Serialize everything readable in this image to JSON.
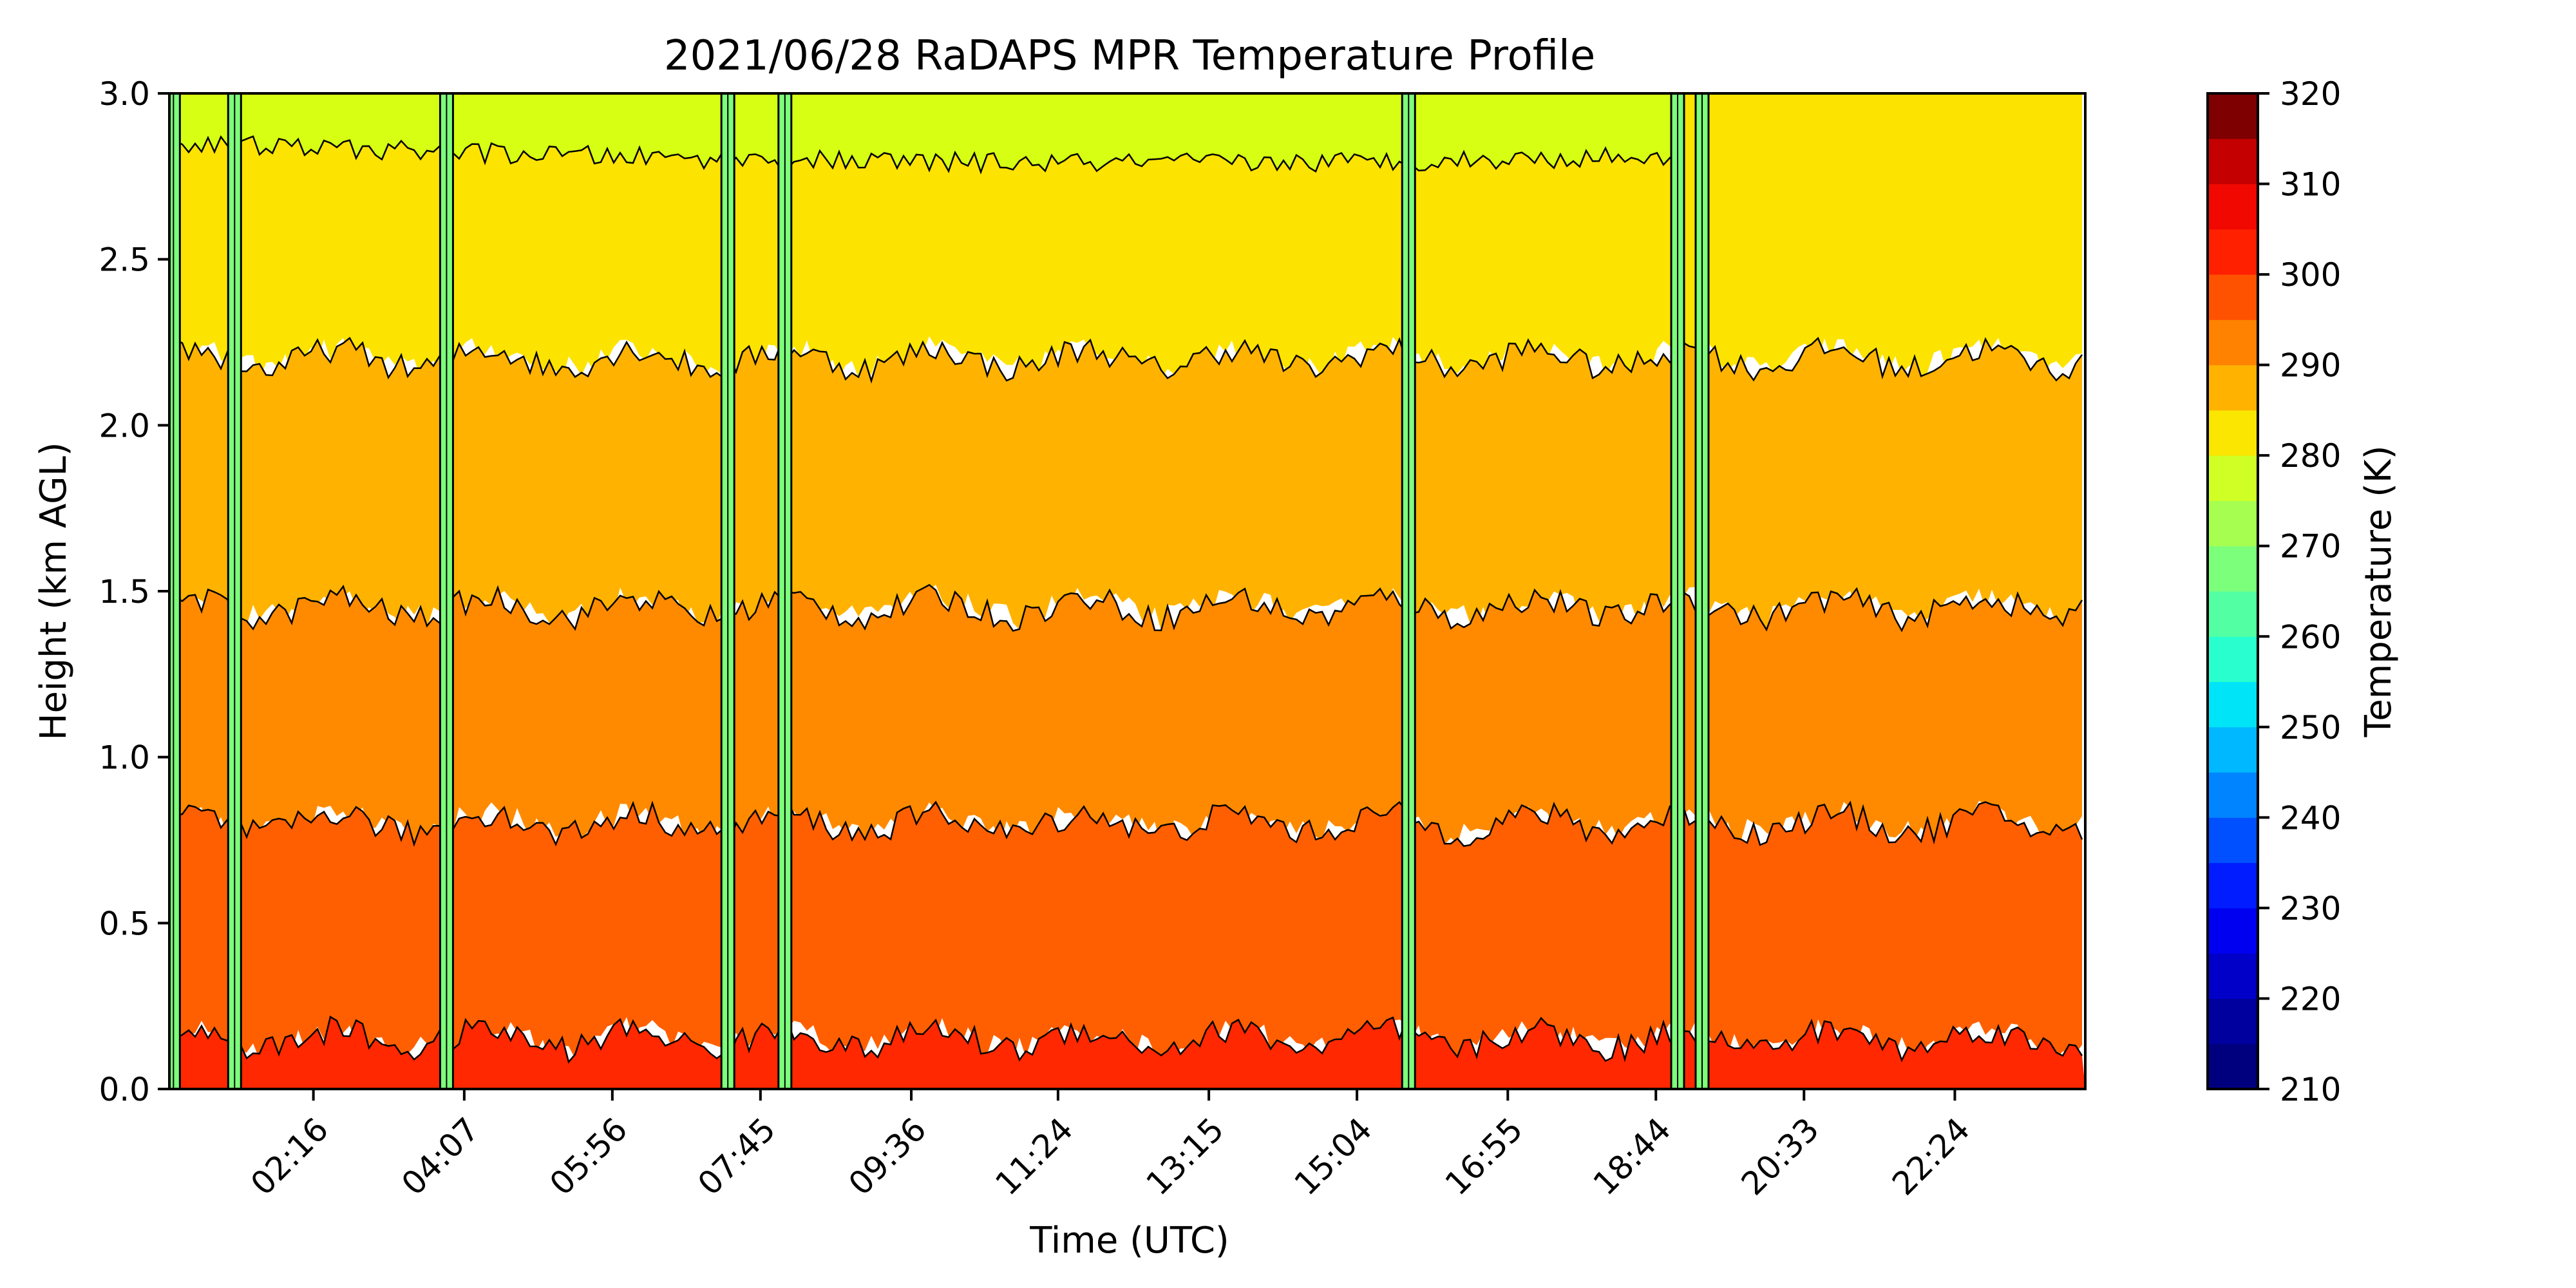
{
  "chart_data": {
    "type": "heatmap",
    "title": "2021/06/28 RaDAPS MPR Temperature Profile",
    "xlabel": "Time (UTC)",
    "ylabel": "Height (km AGL)",
    "colorbar_label": "Temperature (K)",
    "x_range_hours": [
      0.5,
      24.0
    ],
    "ylim": [
      0.0,
      3.0
    ],
    "x_ticks": [
      {
        "label": "02:16",
        "hour": 2.2667
      },
      {
        "label": "04:07",
        "hour": 4.1167
      },
      {
        "label": "05:56",
        "hour": 5.9333
      },
      {
        "label": "07:45",
        "hour": 7.75
      },
      {
        "label": "09:36",
        "hour": 9.6
      },
      {
        "label": "11:24",
        "hour": 11.4
      },
      {
        "label": "13:15",
        "hour": 13.25
      },
      {
        "label": "15:04",
        "hour": 15.0667
      },
      {
        "label": "16:55",
        "hour": 16.9167
      },
      {
        "label": "18:44",
        "hour": 18.7333
      },
      {
        "label": "20:33",
        "hour": 20.55
      },
      {
        "label": "22:24",
        "hour": 22.4
      }
    ],
    "y_ticks": [
      {
        "label": "0.0",
        "value": 0.0
      },
      {
        "label": "0.5",
        "value": 0.5
      },
      {
        "label": "1.0",
        "value": 1.0
      },
      {
        "label": "1.5",
        "value": 1.5
      },
      {
        "label": "2.0",
        "value": 2.0
      },
      {
        "label": "2.5",
        "value": 2.5
      },
      {
        "label": "3.0",
        "value": 3.0
      }
    ],
    "colorbar": {
      "min": 210,
      "max": 320,
      "step": 5,
      "tick_values": [
        210,
        220,
        230,
        240,
        250,
        260,
        270,
        280,
        290,
        300,
        310,
        320
      ],
      "tick_labels": [
        "210",
        "220",
        "230",
        "240",
        "250",
        "260",
        "270",
        "280",
        "290",
        "300",
        "310",
        "320"
      ],
      "bands": [
        {
          "lo": 210,
          "hi": 215,
          "color": "#00007f"
        },
        {
          "lo": 215,
          "hi": 220,
          "color": "#00009f"
        },
        {
          "lo": 220,
          "hi": 225,
          "color": "#0000c8"
        },
        {
          "lo": 225,
          "hi": 230,
          "color": "#0000f1"
        },
        {
          "lo": 230,
          "hi": 235,
          "color": "#001cff"
        },
        {
          "lo": 235,
          "hi": 240,
          "color": "#0050ff"
        },
        {
          "lo": 240,
          "hi": 245,
          "color": "#0084ff"
        },
        {
          "lo": 245,
          "hi": 250,
          "color": "#00b8ff"
        },
        {
          "lo": 250,
          "hi": 255,
          "color": "#00e4f8"
        },
        {
          "lo": 255,
          "hi": 260,
          "color": "#29ffce"
        },
        {
          "lo": 260,
          "hi": 265,
          "color": "#53ffa3"
        },
        {
          "lo": 265,
          "hi": 270,
          "color": "#7cff7a"
        },
        {
          "lo": 270,
          "hi": 275,
          "color": "#a6ff50"
        },
        {
          "lo": 275,
          "hi": 280,
          "color": "#d0ff26"
        },
        {
          "lo": 280,
          "hi": 285,
          "color": "#fae600"
        },
        {
          "lo": 285,
          "hi": 290,
          "color": "#ffb200"
        },
        {
          "lo": 290,
          "hi": 295,
          "color": "#ff8200"
        },
        {
          "lo": 295,
          "hi": 300,
          "color": "#ff5200"
        },
        {
          "lo": 300,
          "hi": 305,
          "color": "#ff2000"
        },
        {
          "lo": 305,
          "hi": 310,
          "color": "#f10800"
        },
        {
          "lo": 310,
          "hi": 315,
          "color": "#c40000"
        },
        {
          "lo": 315,
          "hi": 320,
          "color": "#7f0000"
        }
      ]
    },
    "field_bands": [
      {
        "temp_range_K": [
          280,
          290
        ],
        "color": "#fde300",
        "height_from_km": 2.2,
        "height_to_km": 3.0
      },
      {
        "temp_range_K": [
          290,
          295
        ],
        "color": "#ffb300",
        "height_from_km": 1.45,
        "height_to_km": 2.2
      },
      {
        "temp_range_K": [
          295,
          300
        ],
        "color": "#ff8a00",
        "height_from_km": 0.8,
        "height_to_km": 1.45
      },
      {
        "temp_range_K": [
          300,
          305
        ],
        "color": "#ff5f00",
        "height_from_km": 0.15,
        "height_to_km": 0.8
      },
      {
        "temp_range_K": [
          305,
          310
        ],
        "color": "#ff2800",
        "height_from_km": 0.0,
        "height_to_km": 0.15
      }
    ],
    "cold_upper_region": {
      "color": "#d6ff14",
      "hour_from": 0.5,
      "hour_to": 19.0,
      "height_from_km": 2.85,
      "height_to_km": 3.0
    },
    "anomaly_columns_hours": [
      0.55,
      1.3,
      3.9,
      7.35,
      8.05,
      15.7,
      19.0,
      19.3
    ]
  }
}
